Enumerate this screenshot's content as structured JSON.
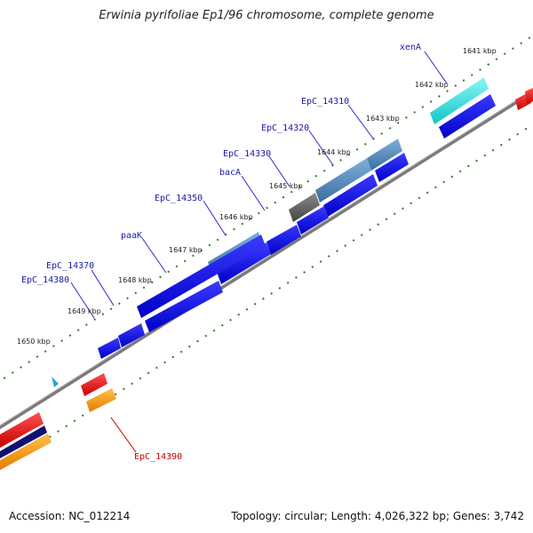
{
  "title": "Erwinia pyrifoliae Ep1/96 chromosome, complete genome",
  "footer": {
    "accession": "Accession: NC_012214",
    "summary": "Topology: circular; Length: 4,026,322 bp; Genes: 3,742"
  },
  "kbp_ticks": [
    "1641 kbp",
    "1642 kbp",
    "1643 kbp",
    "1644 kbp",
    "1645 kbp",
    "1646 kbp",
    "1647 kbp",
    "1648 kbp",
    "1649 kbp",
    "1650 kbp"
  ],
  "gene_labels": [
    {
      "name": "xenA",
      "color": "#1a1aa8"
    },
    {
      "name": "EpC_14310",
      "color": "#1a1aa8"
    },
    {
      "name": "EpC_14320",
      "color": "#1a1aa8"
    },
    {
      "name": "EpC_14330",
      "color": "#1a1aa8"
    },
    {
      "name": "bacA",
      "color": "#1a1aa8"
    },
    {
      "name": "EpC_14350",
      "color": "#1a1aa8"
    },
    {
      "name": "paaK",
      "color": "#1a1aa8"
    },
    {
      "name": "EpC_14370",
      "color": "#1a1aa8"
    },
    {
      "name": "EpC_14380",
      "color": "#1a1aa8"
    },
    {
      "name": "EpC_14390",
      "color": "#cc0000"
    }
  ],
  "colors": {
    "forward_cds": "#0a0ae6",
    "highlight_cyan": "#16dede",
    "steel_blue": "#4a7fb5",
    "gray_gene": "#666666",
    "reverse_red": "#e60000",
    "reverse_orange": "#ff9a00",
    "navy": "#101070",
    "backbone": "#888888",
    "tick_green": "#2e7d1f"
  }
}
